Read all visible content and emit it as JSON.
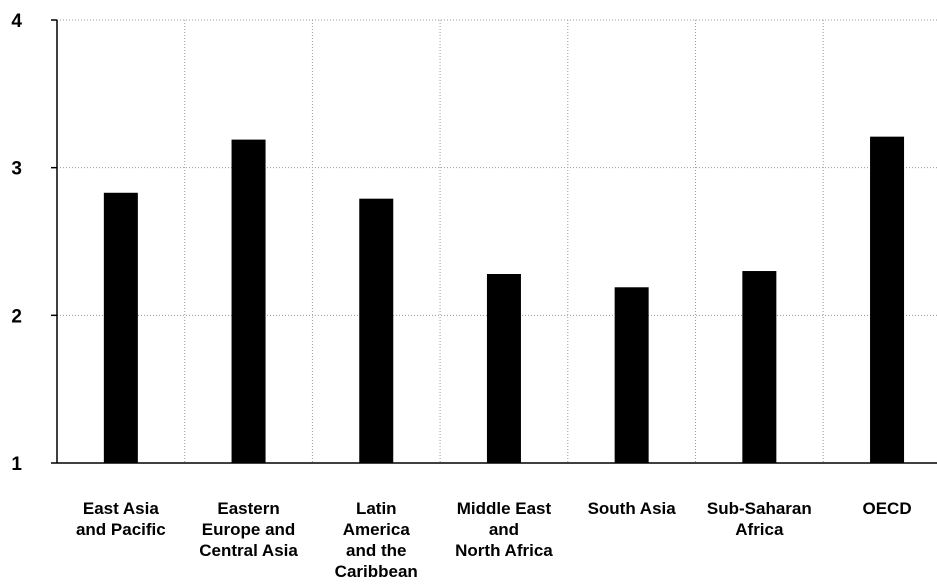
{
  "chart_data": {
    "type": "bar",
    "title": "",
    "xlabel": "",
    "ylabel": "",
    "ylim": [
      1,
      4
    ],
    "yticks": [
      "1",
      "2",
      "3",
      "4"
    ],
    "grid": true,
    "categories": [
      [
        "East Asia",
        "and Pacific"
      ],
      [
        "Eastern",
        "Europe and",
        "Central Asia"
      ],
      [
        "Latin",
        "America",
        "and the",
        "Caribbean"
      ],
      [
        "Middle East",
        "and",
        "North Africa"
      ],
      [
        "South Asia"
      ],
      [
        "Sub-Saharan",
        "Africa"
      ],
      [
        "OECD"
      ]
    ],
    "values": [
      2.83,
      3.19,
      2.79,
      2.28,
      2.19,
      2.3,
      3.21
    ],
    "bar_color": "#000000"
  }
}
